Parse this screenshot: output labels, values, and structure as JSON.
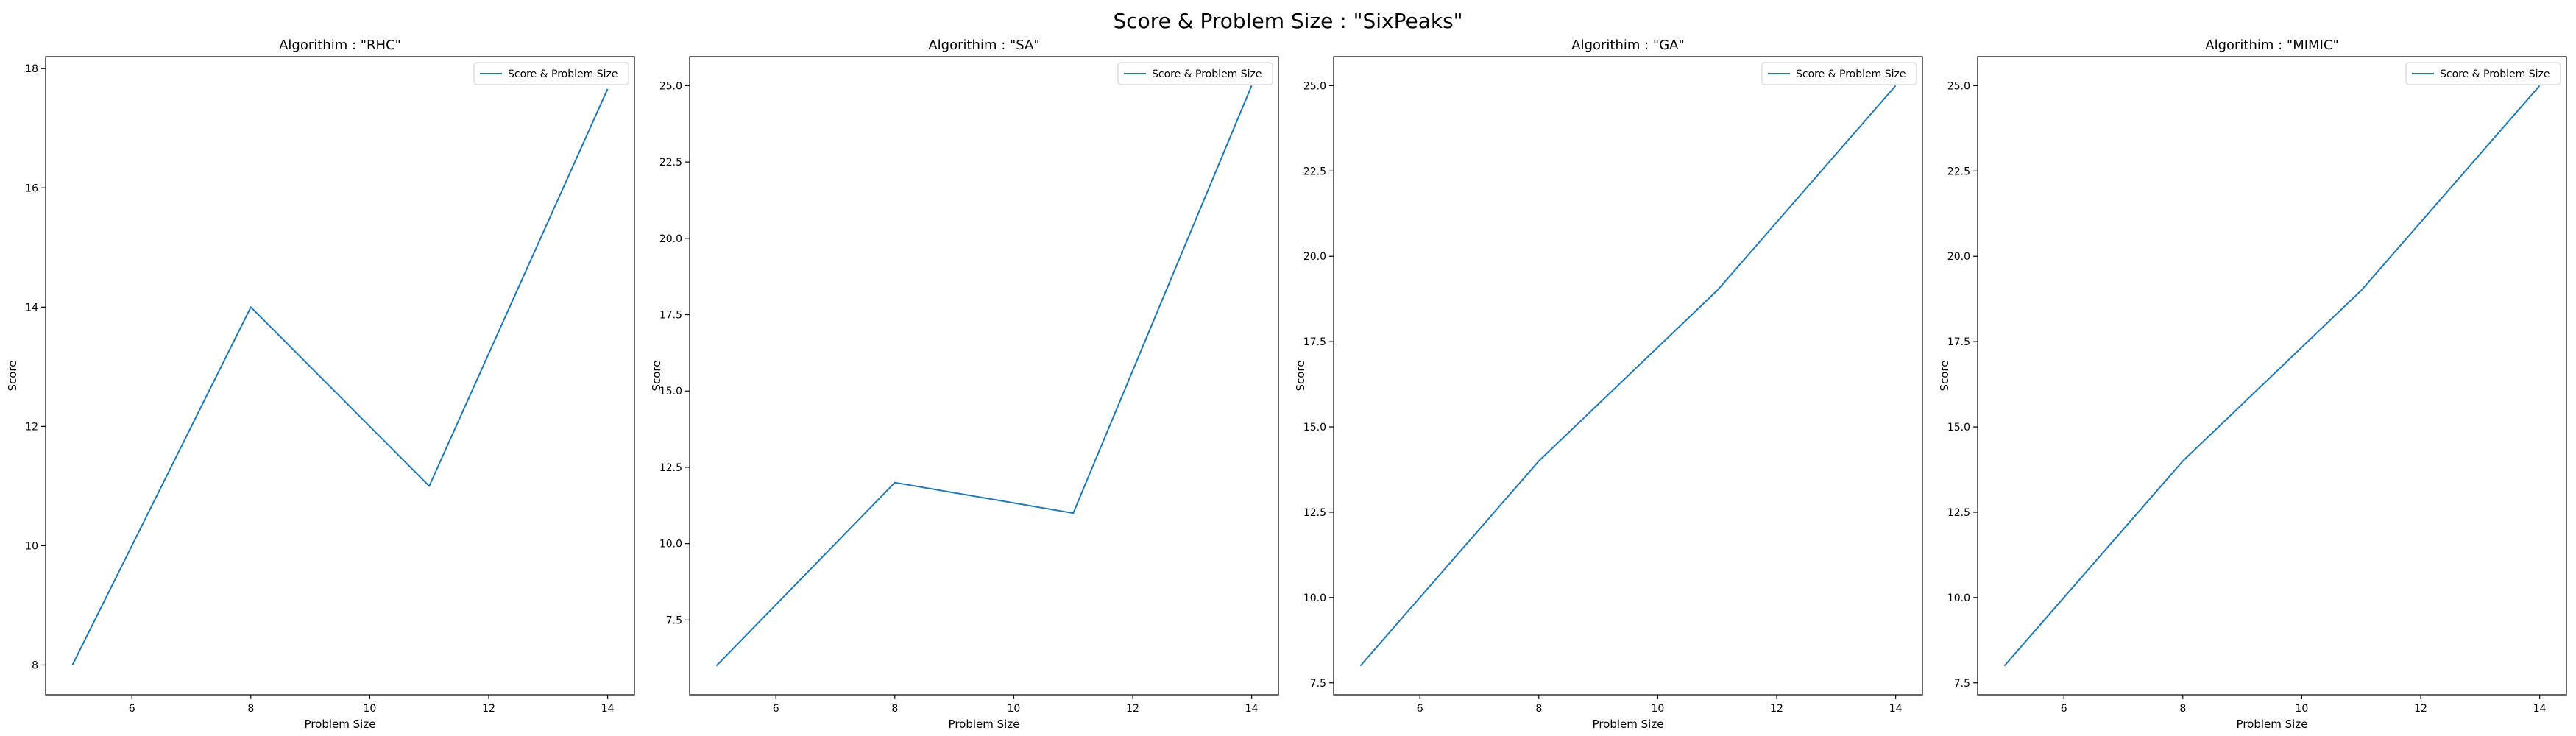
{
  "figure": {
    "title": "Score & Problem Size : \"SixPeaks\""
  },
  "colors": {
    "line": "#1f77b4",
    "axes": "#000000",
    "background": "#ffffff",
    "legend_border": "#cccccc"
  },
  "chart_data": [
    {
      "type": "line",
      "title": "Algorithim : \"RHC\"",
      "xlabel": "Problem Size",
      "ylabel": "Score",
      "x": [
        5,
        8,
        11,
        14
      ],
      "series": [
        {
          "name": "Score & Problem Size",
          "values": [
            8,
            14,
            11,
            17.66
          ]
        }
      ],
      "xlim": [
        4.55,
        14.45
      ],
      "ylim": [
        7.5,
        18.2
      ],
      "xticks": [
        6,
        8,
        10,
        12,
        14
      ],
      "yticks": [
        8,
        10,
        12,
        14,
        16,
        18
      ],
      "legend": "top-right",
      "grid": false
    },
    {
      "type": "line",
      "title": "Algorithim : \"SA\"",
      "xlabel": "Problem Size",
      "ylabel": "Score",
      "x": [
        5,
        8,
        11,
        14
      ],
      "series": [
        {
          "name": "Score & Problem Size",
          "values": [
            6,
            12,
            11,
            25
          ]
        }
      ],
      "xlim": [
        4.55,
        14.45
      ],
      "ylim": [
        5.05,
        25.95
      ],
      "xticks": [
        6,
        8,
        10,
        12,
        14
      ],
      "yticks": [
        7.5,
        10.0,
        12.5,
        15.0,
        17.5,
        20.0,
        22.5,
        25.0
      ],
      "legend": "top-right",
      "grid": false
    },
    {
      "type": "line",
      "title": "Algorithim : \"GA\"",
      "xlabel": "Problem Size",
      "ylabel": "Score",
      "x": [
        5,
        8,
        11,
        14
      ],
      "series": [
        {
          "name": "Score & Problem Size",
          "values": [
            8,
            14,
            19,
            25
          ]
        }
      ],
      "xlim": [
        4.55,
        14.45
      ],
      "ylim": [
        7.15,
        25.85
      ],
      "xticks": [
        6,
        8,
        10,
        12,
        14
      ],
      "yticks": [
        7.5,
        10.0,
        12.5,
        15.0,
        17.5,
        20.0,
        22.5,
        25.0
      ],
      "legend": "top-right",
      "grid": false
    },
    {
      "type": "line",
      "title": "Algorithim : \"MIMIC\"",
      "xlabel": "Problem Size",
      "ylabel": "Score",
      "x": [
        5,
        8,
        11,
        14
      ],
      "series": [
        {
          "name": "Score & Problem Size",
          "values": [
            8,
            14,
            19,
            25
          ]
        }
      ],
      "xlim": [
        4.55,
        14.45
      ],
      "ylim": [
        7.15,
        25.85
      ],
      "xticks": [
        6,
        8,
        10,
        12,
        14
      ],
      "yticks": [
        7.5,
        10.0,
        12.5,
        15.0,
        17.5,
        20.0,
        22.5,
        25.0
      ],
      "legend": "top-right",
      "grid": false
    }
  ]
}
